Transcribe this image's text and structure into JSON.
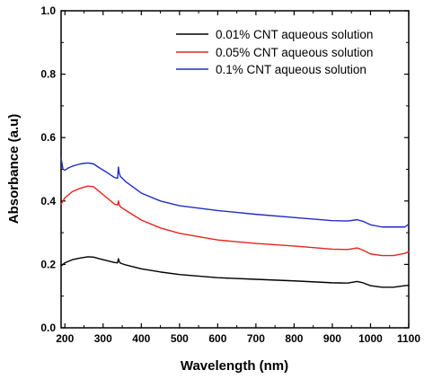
{
  "chart_data": {
    "type": "line",
    "title": "",
    "xlabel": "Wavelength (nm)",
    "ylabel": "Absorbance (a.u)",
    "xlim": [
      190,
      1100
    ],
    "ylim": [
      0.0,
      1.0
    ],
    "x_ticks": [
      200,
      300,
      400,
      500,
      600,
      700,
      800,
      900,
      1000,
      1100
    ],
    "x_tick_labels": [
      "200",
      "300",
      "400",
      "500",
      "600",
      "700",
      "800",
      "900",
      "1000",
      "1100"
    ],
    "y_ticks": [
      0.0,
      0.2,
      0.4,
      0.6,
      0.8,
      1.0
    ],
    "y_tick_labels": [
      "0.0",
      "0.2",
      "0.4",
      "0.6",
      "0.8",
      "1.0"
    ],
    "grid": false,
    "legend_position": "top-right",
    "series": [
      {
        "name": "0.01% CNT aqueous solution",
        "color": "#000000",
        "x": [
          190,
          200,
          220,
          240,
          260,
          275,
          290,
          310,
          330,
          338,
          340,
          342,
          345,
          360,
          400,
          450,
          500,
          600,
          700,
          800,
          900,
          940,
          965,
          980,
          1000,
          1030,
          1060,
          1090,
          1100
        ],
        "y": [
          0.195,
          0.205,
          0.215,
          0.22,
          0.224,
          0.223,
          0.218,
          0.212,
          0.206,
          0.205,
          0.218,
          0.21,
          0.204,
          0.198,
          0.186,
          0.176,
          0.168,
          0.158,
          0.153,
          0.148,
          0.142,
          0.141,
          0.146,
          0.142,
          0.133,
          0.128,
          0.128,
          0.133,
          0.134
        ]
      },
      {
        "name": "0.05% CNT aqueous solution",
        "color": "#e8231e",
        "x": [
          190,
          200,
          220,
          240,
          260,
          275,
          290,
          310,
          330,
          338,
          340,
          342,
          345,
          360,
          400,
          450,
          500,
          600,
          700,
          800,
          900,
          940,
          965,
          980,
          1000,
          1030,
          1060,
          1090,
          1100
        ],
        "y": [
          0.39,
          0.41,
          0.43,
          0.44,
          0.447,
          0.445,
          0.43,
          0.41,
          0.39,
          0.387,
          0.4,
          0.39,
          0.382,
          0.37,
          0.34,
          0.315,
          0.298,
          0.277,
          0.266,
          0.258,
          0.248,
          0.247,
          0.252,
          0.245,
          0.233,
          0.228,
          0.228,
          0.235,
          0.24
        ]
      },
      {
        "name": "0.1% CNT aqueous solution",
        "color": "#1f2ec2",
        "x": [
          190,
          195,
          200,
          210,
          220,
          240,
          260,
          275,
          290,
          310,
          330,
          338,
          340,
          342,
          345,
          360,
          400,
          450,
          500,
          600,
          700,
          800,
          900,
          940,
          965,
          980,
          1000,
          1030,
          1060,
          1090,
          1100
        ],
        "y": [
          0.535,
          0.5,
          0.497,
          0.505,
          0.51,
          0.517,
          0.52,
          0.517,
          0.505,
          0.49,
          0.474,
          0.472,
          0.507,
          0.49,
          0.478,
          0.46,
          0.425,
          0.4,
          0.385,
          0.37,
          0.358,
          0.348,
          0.338,
          0.337,
          0.341,
          0.336,
          0.325,
          0.318,
          0.318,
          0.318,
          0.327
        ]
      }
    ]
  }
}
